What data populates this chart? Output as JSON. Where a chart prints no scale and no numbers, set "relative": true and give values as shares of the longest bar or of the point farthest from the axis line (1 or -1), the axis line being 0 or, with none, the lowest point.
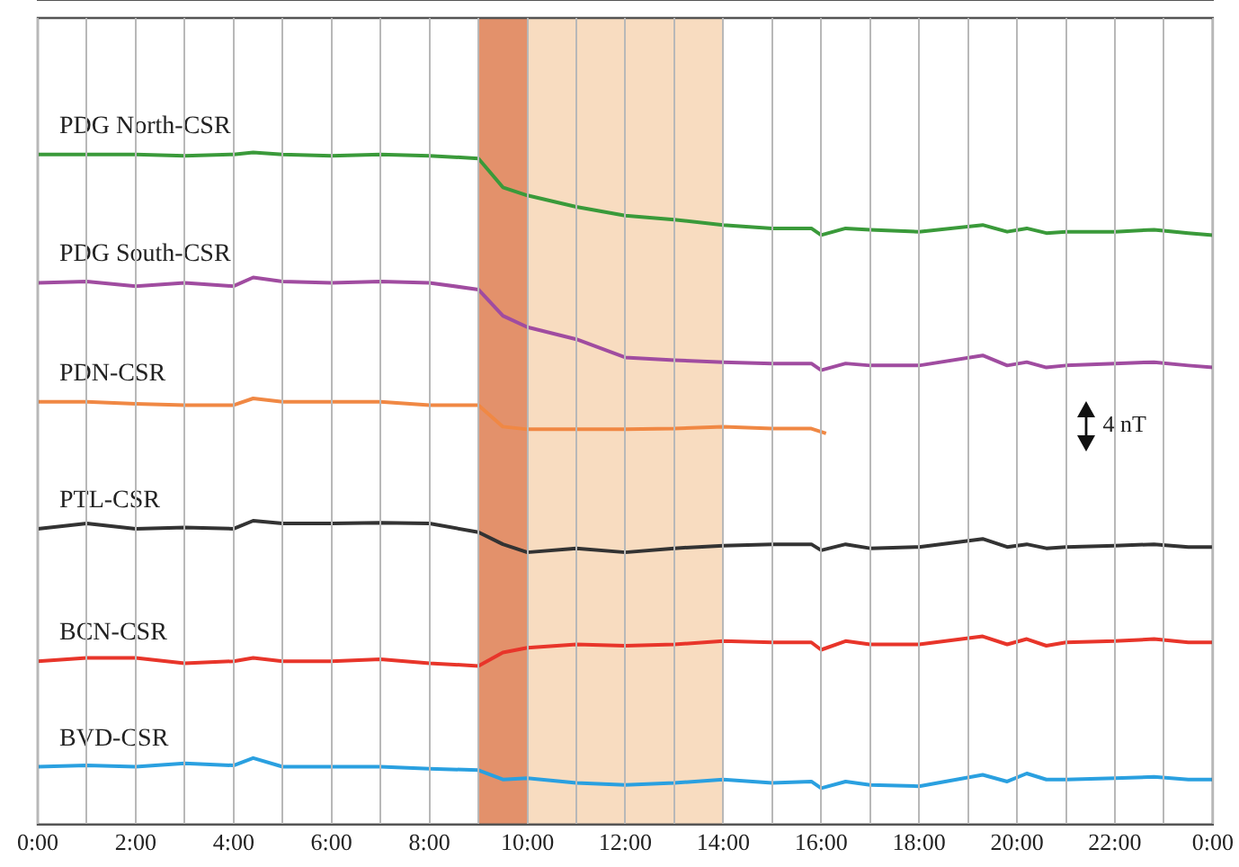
{
  "chart_data": {
    "type": "line",
    "relative": true,
    "x": [
      0,
      1,
      2,
      3,
      4,
      4.4,
      5,
      6,
      7,
      8,
      9,
      9.5,
      10,
      11,
      12,
      13,
      14,
      15,
      15.8,
      16,
      16.5,
      17,
      18,
      19.3,
      19.8,
      20.2,
      20.6,
      21,
      22,
      22.8,
      23.5,
      24
    ],
    "xlim": [
      0,
      24
    ],
    "xticks": [
      {
        "value": 0,
        "label": "0:00"
      },
      {
        "value": 1,
        "label": null
      },
      {
        "value": 2,
        "label": "2:00"
      },
      {
        "value": 3,
        "label": null
      },
      {
        "value": 4,
        "label": "4:00"
      },
      {
        "value": 5,
        "label": null
      },
      {
        "value": 6,
        "label": "6:00"
      },
      {
        "value": 7,
        "label": null
      },
      {
        "value": 8,
        "label": "8:00"
      },
      {
        "value": 9,
        "label": null
      },
      {
        "value": 10,
        "label": "10:00"
      },
      {
        "value": 11,
        "label": null
      },
      {
        "value": 12,
        "label": "12:00"
      },
      {
        "value": 13,
        "label": null
      },
      {
        "value": 14,
        "label": "14:00"
      },
      {
        "value": 15,
        "label": null
      },
      {
        "value": 16,
        "label": "16:00"
      },
      {
        "value": 17,
        "label": null
      },
      {
        "value": 18,
        "label": "18:00"
      },
      {
        "value": 19,
        "label": null
      },
      {
        "value": 20,
        "label": "20:00"
      },
      {
        "value": 21,
        "label": null
      },
      {
        "value": 22,
        "label": "22:00"
      },
      {
        "value": 23,
        "label": null
      },
      {
        "value": 24,
        "label": "0:00"
      }
    ],
    "series": [
      {
        "name": "PDG North-CSR",
        "color": "#3a9a3a",
        "values": [
          0.997,
          0.997,
          0.997,
          0.995,
          0.997,
          1,
          0.997,
          0.995,
          0.997,
          0.995,
          0.991,
          0.948,
          0.936,
          0.919,
          0.906,
          0.9,
          0.892,
          0.887,
          0.887,
          0.877,
          0.887,
          0.885,
          0.882,
          0.892,
          0.882,
          0.887,
          0.88,
          0.882,
          0.882,
          0.885,
          0.88,
          0.877
        ]
      },
      {
        "name": "PDG South-CSR",
        "color": "#a04ca0",
        "values": [
          0.806,
          0.808,
          0.801,
          0.806,
          0.801,
          0.814,
          0.808,
          0.806,
          0.808,
          0.806,
          0.796,
          0.757,
          0.74,
          0.722,
          0.695,
          0.691,
          0.688,
          0.686,
          0.686,
          0.676,
          0.686,
          0.683,
          0.683,
          0.698,
          0.683,
          0.688,
          0.68,
          0.683,
          0.686,
          0.688,
          0.683,
          0.68
        ]
      },
      {
        "name": "PDN-CSR",
        "color": "#f08844",
        "x": [
          0,
          1,
          2,
          3,
          4,
          4.4,
          5,
          6,
          7,
          8,
          9,
          9.5,
          10,
          11,
          12,
          13,
          14,
          15,
          15.8,
          16.1
        ],
        "values": [
          0.629,
          0.629,
          0.626,
          0.624,
          0.624,
          0.634,
          0.629,
          0.629,
          0.629,
          0.624,
          0.624,
          0.592,
          0.588,
          0.588,
          0.588,
          0.589,
          0.592,
          0.589,
          0.589,
          0.582
        ]
      },
      {
        "name": "PTL-CSR",
        "color": "#333333",
        "values": [
          0.44,
          0.448,
          0.44,
          0.442,
          0.44,
          0.452,
          0.448,
          0.448,
          0.449,
          0.448,
          0.435,
          0.417,
          0.405,
          0.411,
          0.405,
          0.411,
          0.415,
          0.417,
          0.417,
          0.408,
          0.417,
          0.411,
          0.413,
          0.425,
          0.413,
          0.417,
          0.411,
          0.413,
          0.415,
          0.417,
          0.413,
          0.413
        ]
      },
      {
        "name": "BCN-CSR",
        "color": "#e8352a",
        "values": [
          0.243,
          0.248,
          0.248,
          0.24,
          0.243,
          0.248,
          0.243,
          0.243,
          0.246,
          0.24,
          0.236,
          0.256,
          0.263,
          0.268,
          0.266,
          0.268,
          0.273,
          0.271,
          0.271,
          0.26,
          0.273,
          0.268,
          0.268,
          0.28,
          0.268,
          0.276,
          0.266,
          0.271,
          0.273,
          0.276,
          0.271,
          0.271
        ]
      },
      {
        "name": "BVD-CSR",
        "color": "#2aa0e0",
        "values": [
          0.086,
          0.088,
          0.086,
          0.091,
          0.088,
          0.099,
          0.086,
          0.086,
          0.086,
          0.083,
          0.081,
          0.067,
          0.069,
          0.062,
          0.059,
          0.062,
          0.067,
          0.062,
          0.064,
          0.054,
          0.064,
          0.059,
          0.057,
          0.074,
          0.064,
          0.076,
          0.067,
          0.067,
          0.069,
          0.071,
          0.067,
          0.067
        ]
      }
    ],
    "bands": [
      {
        "axis": "x",
        "from": 9,
        "to": 10,
        "color": "#e3916b"
      },
      {
        "axis": "x",
        "from": 10,
        "to": 14,
        "color": "#f8dcc0"
      }
    ],
    "annotations": [
      "4 nT"
    ],
    "grid": "x",
    "legend": false,
    "marker": "none",
    "line_style": "solid"
  }
}
